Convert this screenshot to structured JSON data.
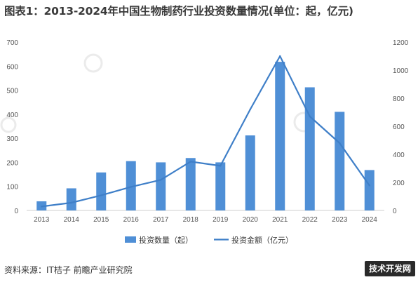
{
  "title": "图表1：2013-2024年中国生物制药行业投资数量情况(单位：起，亿元)",
  "source": "资料来源：IT桔子 前瞻产业研究院",
  "brand_watermark": "技术开发网",
  "chart_data": {
    "type": "bar",
    "categories": [
      "2013",
      "2014",
      "2015",
      "2016",
      "2017",
      "2018",
      "2019",
      "2020",
      "2021",
      "2022",
      "2023",
      "2024"
    ],
    "series": [
      {
        "name": "投资数量（起）",
        "type": "bar",
        "axis": "left",
        "values": [
          38,
          92,
          158,
          205,
          200,
          218,
          200,
          312,
          618,
          512,
          410,
          168
        ]
      },
      {
        "name": "投资金额（亿元）",
        "type": "line",
        "axis": "right",
        "values": [
          28,
          55,
          108,
          168,
          218,
          348,
          318,
          720,
          1100,
          670,
          480,
          178
        ]
      }
    ],
    "left_axis": {
      "ylim": [
        0,
        700
      ],
      "ticks": [
        0,
        100,
        200,
        300,
        400,
        500,
        600,
        700
      ]
    },
    "right_axis": {
      "ylim": [
        0,
        1200
      ],
      "ticks": [
        0,
        200,
        400,
        600,
        800,
        1000,
        1200
      ]
    },
    "colors": {
      "bar": "#4f8fd6",
      "line": "#3f7fc8"
    },
    "grid": false,
    "legend_position": "bottom"
  }
}
